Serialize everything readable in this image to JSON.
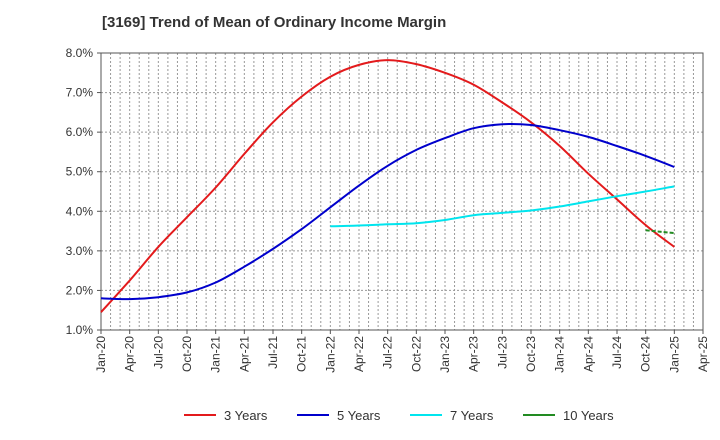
{
  "chart_data": {
    "type": "line",
    "title": "[3169]  Trend of Mean of Ordinary Income Margin",
    "xlabel": "",
    "ylabel": "",
    "ylim": [
      1.0,
      8.0
    ],
    "y_ticks": [
      "1.0%",
      "2.0%",
      "3.0%",
      "4.0%",
      "5.0%",
      "6.0%",
      "7.0%",
      "8.0%"
    ],
    "x_ticks": [
      "Jan-20",
      "Apr-20",
      "Jul-20",
      "Oct-20",
      "Jan-21",
      "Apr-21",
      "Jul-21",
      "Oct-21",
      "Jan-22",
      "Apr-22",
      "Jul-22",
      "Oct-22",
      "Jan-23",
      "Apr-23",
      "Jul-23",
      "Oct-23",
      "Jan-24",
      "Apr-24",
      "Jul-24",
      "Oct-24",
      "Jan-25",
      "Apr-25"
    ],
    "grid": true,
    "legend_position": "bottom",
    "series": [
      {
        "name": "3 Years",
        "color": "#e31a1c",
        "x": [
          "Jan-20",
          "Apr-20",
          "Jul-20",
          "Oct-20",
          "Jan-21",
          "Apr-21",
          "Jul-21",
          "Oct-21",
          "Jan-22",
          "Apr-22",
          "Jul-22",
          "Oct-22",
          "Jan-23",
          "Apr-23",
          "Jul-23",
          "Oct-23",
          "Jan-24",
          "Apr-24",
          "Jul-24",
          "Oct-24",
          "Jan-25"
        ],
        "values": [
          1.45,
          2.25,
          3.1,
          3.85,
          4.6,
          5.45,
          6.25,
          6.9,
          7.4,
          7.7,
          7.82,
          7.72,
          7.5,
          7.2,
          6.75,
          6.25,
          5.65,
          4.95,
          4.3,
          3.65,
          3.1
        ]
      },
      {
        "name": "5 Years",
        "color": "#0000cc",
        "x": [
          "Jan-20",
          "Apr-20",
          "Jul-20",
          "Oct-20",
          "Jan-21",
          "Apr-21",
          "Jul-21",
          "Oct-21",
          "Jan-22",
          "Apr-22",
          "Jul-22",
          "Oct-22",
          "Jan-23",
          "Apr-23",
          "Jul-23",
          "Oct-23",
          "Jan-24",
          "Apr-24",
          "Jul-24",
          "Oct-24",
          "Jan-25"
        ],
        "values": [
          1.8,
          1.78,
          1.83,
          1.95,
          2.2,
          2.6,
          3.05,
          3.55,
          4.1,
          4.65,
          5.15,
          5.55,
          5.85,
          6.1,
          6.2,
          6.18,
          6.05,
          5.88,
          5.65,
          5.4,
          5.12
        ]
      },
      {
        "name": "7 Years",
        "color": "#00e5ee",
        "x": [
          "Jan-22",
          "Apr-22",
          "Jul-22",
          "Oct-22",
          "Jan-23",
          "Apr-23",
          "Jul-23",
          "Oct-23",
          "Jan-24",
          "Apr-24",
          "Jul-24",
          "Oct-24",
          "Jan-25"
        ],
        "values": [
          3.62,
          3.64,
          3.67,
          3.7,
          3.78,
          3.9,
          3.96,
          4.02,
          4.12,
          4.25,
          4.38,
          4.5,
          4.63
        ]
      },
      {
        "name": "10 Years",
        "color": "#228b22",
        "x": [
          "Oct-24",
          "Jan-25"
        ],
        "values": [
          3.52,
          3.45
        ]
      }
    ]
  }
}
